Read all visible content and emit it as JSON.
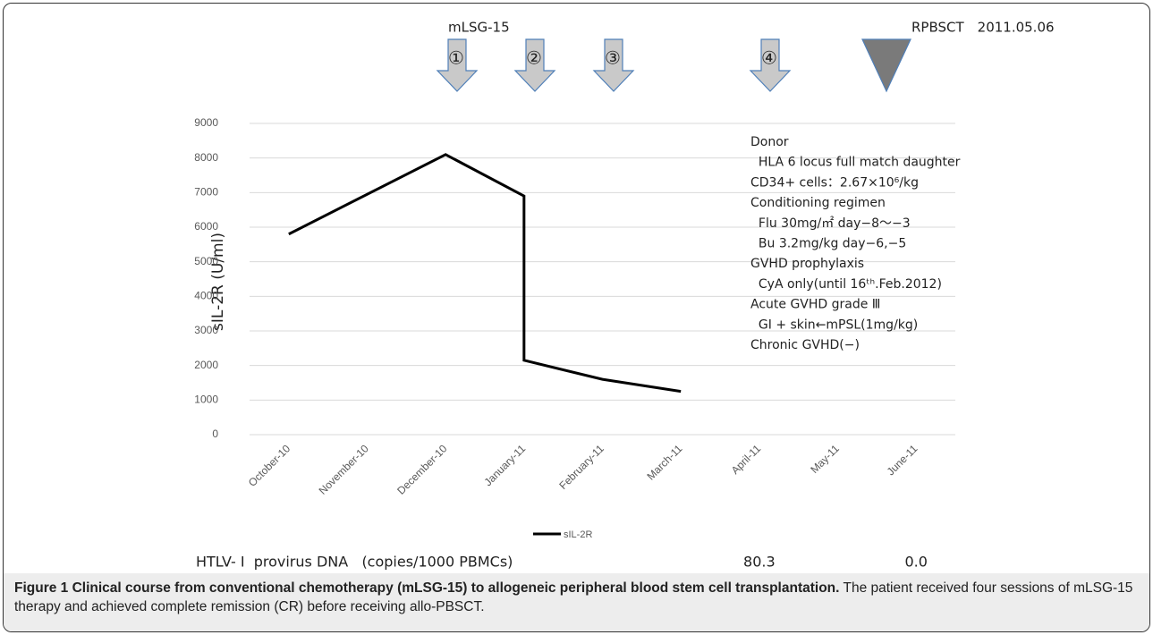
{
  "chart_data": {
    "type": "line",
    "ylabel": "sIL-2R (U/ml)",
    "categories": [
      "October-10",
      "November-10",
      "December-10",
      "January-11",
      "February-11",
      "March-11",
      "April-11",
      "May-11",
      "June-11"
    ],
    "series": [
      {
        "name": "sIL-2R",
        "color": "#000000",
        "x": [
          "October-10",
          "December-10",
          "January-11",
          "January-11",
          "February-11",
          "March-11"
        ],
        "values": [
          5800,
          8100,
          6900,
          2150,
          1600,
          1250
        ]
      }
    ],
    "ylim": [
      0,
      9000
    ],
    "yticks": [
      0,
      1000,
      2000,
      3000,
      4000,
      5000,
      6000,
      7000,
      8000,
      9000
    ],
    "grid": true,
    "legend": "bottom"
  },
  "timeline": {
    "label": "mLSG-15",
    "courses": [
      "①",
      "②",
      "③",
      "④"
    ],
    "transplant": "RPBSCT　2011.05.06"
  },
  "notes": [
    "Donor",
    "  HLA 6 locus full match daughter",
    "CD34+ cells：2.67×10⁶/kg",
    "Conditioning regimen",
    "  Flu 30mg/㎡ day−8〜−3",
    "  Bu 3.2mg/kg day−6,−5",
    "GVHD prophylaxis",
    "  CyA only(until 16ᵗʰ.Feb.2012)",
    "Acute GVHD grade Ⅲ",
    "  GI + skin←mPSL(1mg/kg)",
    "Chronic GVHD(−)"
  ],
  "htlv": {
    "label": "HTLV- Ⅰ  provirus DNA   (copies/1000 PBMCs)",
    "values": [
      "80.3",
      "0.0"
    ]
  },
  "caption": {
    "label": "Figure 1 Clinical course from conventional chemotherapy (mLSG-15) to allogeneic peripheral blood stem cell transplantation.",
    "text": "The patient received four sessions of mLSG-15 therapy and achieved complete remission (CR) before receiving allo-PBSCT."
  }
}
